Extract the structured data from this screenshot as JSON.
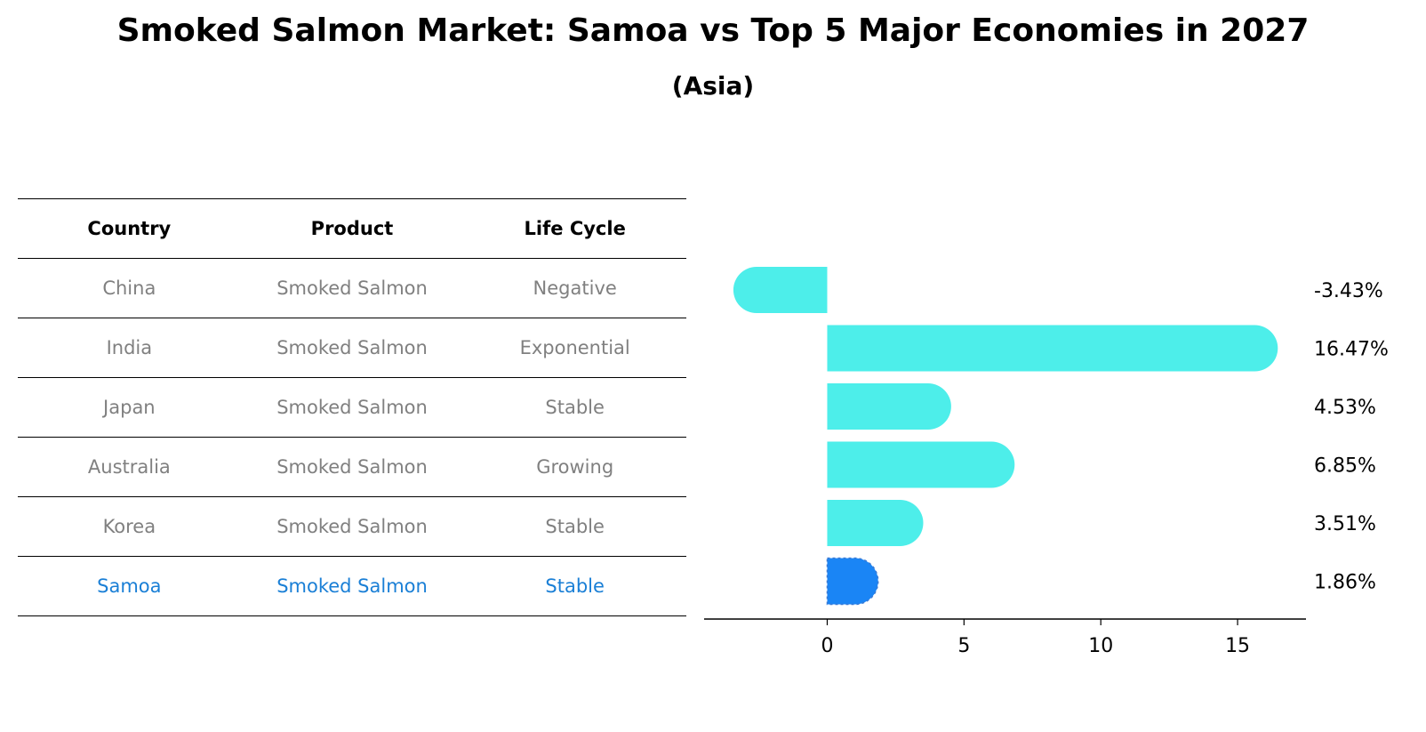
{
  "title": "Smoked Salmon Market: Samoa vs Top 5 Major Economies in 2027",
  "subtitle": "(Asia)",
  "table": {
    "headers": [
      "Country",
      "Product",
      "Life Cycle"
    ],
    "rows": [
      [
        "China",
        "Smoked Salmon",
        "Negative"
      ],
      [
        "India",
        "Smoked Salmon",
        "Exponential"
      ],
      [
        "Japan",
        "Smoked Salmon",
        "Stable"
      ],
      [
        "Australia",
        "Smoked Salmon",
        "Growing"
      ],
      [
        "Korea",
        "Smoked Salmon",
        "Stable"
      ],
      [
        "Samoa",
        "Smoked Salmon",
        "Stable"
      ]
    ],
    "highlight_row": 5
  },
  "chart_data": {
    "type": "bar",
    "orientation": "horizontal",
    "categories": [
      "China",
      "India",
      "Japan",
      "Australia",
      "Korea",
      "Samoa"
    ],
    "values": [
      -3.43,
      16.47,
      4.53,
      6.85,
      3.51,
      1.86
    ],
    "value_labels": [
      "-3.43%",
      "16.47%",
      "4.53%",
      "6.85%",
      "3.51%",
      "1.86%"
    ],
    "xlim": [
      -4.5,
      17.5
    ],
    "xticks": [
      0,
      5,
      10,
      15
    ],
    "xlabel": "",
    "ylabel": "",
    "grid": false,
    "colors": {
      "default": "#4DEEEA",
      "highlight": "#1A85F5"
    },
    "highlight_index": 5
  }
}
